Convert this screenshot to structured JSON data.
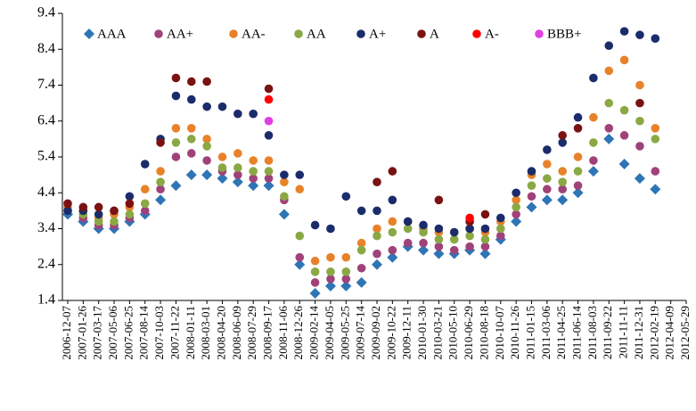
{
  "chart_data": {
    "type": "scatter",
    "categories": [
      "2006-12-07",
      "2007-01-26",
      "2007-03-17",
      "2007-05-06",
      "2007-06-25",
      "2007-08-14",
      "2007-10-03",
      "2007-11-22",
      "2008-01-11",
      "2008-03-01",
      "2008-04-20",
      "2008-06-09",
      "2008-07-29",
      "2008-09-17",
      "2008-11-06",
      "2008-12-26",
      "2009-02-14",
      "2009-04-05",
      "2009-05-25",
      "2009-07-14",
      "2009-09-02",
      "2009-10-22",
      "2009-12-11",
      "2010-01-30",
      "2010-03-21",
      "2010-05-10",
      "2010-06-29",
      "2010-08-18",
      "2010-10-07",
      "2010-11-26",
      "2011-01-15",
      "2011-03-06",
      "2011-04-25",
      "2011-06-14",
      "2011-08-03",
      "2011-09-22",
      "2011-11-11",
      "2011-12-31",
      "2012-02-19",
      "2012-04-09",
      "2012-05-29"
    ],
    "ylim": [
      1.4,
      9.4
    ],
    "yticks": [
      1.4,
      2.4,
      3.4,
      4.4,
      5.4,
      6.4,
      7.4,
      8.4,
      9.4
    ],
    "legend": "top",
    "series": [
      {
        "name": "AAA",
        "color": "#2e75b6",
        "marker": "diamond",
        "values": [
          3.8,
          3.6,
          3.4,
          3.4,
          3.6,
          3.8,
          4.2,
          4.6,
          4.9,
          4.9,
          4.8,
          4.7,
          4.6,
          4.6,
          3.8,
          2.4,
          1.6,
          1.8,
          1.8,
          1.9,
          2.4,
          2.6,
          2.9,
          2.8,
          2.7,
          2.7,
          2.8,
          2.7,
          3.1,
          3.6,
          4.0,
          4.2,
          4.2,
          4.4,
          5.0,
          5.9,
          5.2,
          4.8,
          4.5,
          null,
          null
        ]
      },
      {
        "name": "AA+",
        "color": "#a0427a",
        "marker": "circle",
        "values": [
          3.9,
          3.7,
          3.5,
          3.5,
          3.7,
          3.9,
          4.5,
          5.4,
          5.5,
          5.3,
          5.0,
          4.9,
          4.8,
          4.8,
          4.2,
          2.6,
          1.9,
          2.0,
          2.0,
          2.3,
          2.7,
          2.8,
          3.0,
          3.0,
          2.9,
          2.8,
          2.9,
          2.9,
          3.2,
          3.8,
          4.3,
          4.5,
          4.5,
          4.6,
          5.3,
          6.2,
          6.0,
          5.7,
          5.0,
          null,
          null
        ]
      },
      {
        "name": "AA-",
        "color": "#e8822a",
        "marker": "circle",
        "values": [
          4.0,
          3.9,
          3.7,
          3.8,
          4.0,
          4.5,
          5.0,
          6.2,
          6.2,
          5.9,
          5.4,
          5.5,
          5.3,
          5.3,
          4.7,
          4.5,
          2.5,
          2.6,
          2.6,
          3.0,
          3.4,
          3.6,
          3.6,
          3.4,
          3.3,
          3.3,
          3.4,
          3.3,
          3.6,
          4.2,
          4.9,
          5.2,
          5.0,
          5.4,
          6.5,
          7.8,
          8.1,
          7.4,
          6.2,
          null,
          null
        ]
      },
      {
        "name": "AA",
        "color": "#8aa843",
        "marker": "circle",
        "values": [
          3.9,
          3.8,
          3.6,
          3.6,
          3.8,
          4.1,
          4.7,
          5.8,
          5.9,
          5.7,
          5.1,
          5.1,
          5.0,
          5.0,
          4.3,
          3.2,
          2.2,
          2.2,
          2.2,
          2.8,
          3.2,
          3.3,
          3.4,
          3.3,
          3.1,
          3.1,
          3.2,
          3.1,
          3.4,
          4.0,
          4.6,
          4.8,
          4.7,
          5.0,
          5.8,
          6.9,
          6.7,
          6.4,
          5.9,
          null,
          null
        ]
      },
      {
        "name": "A+",
        "color": "#1b2c6b",
        "marker": "circle",
        "values": [
          3.9,
          3.9,
          3.8,
          3.9,
          4.3,
          5.2,
          5.9,
          7.1,
          7.0,
          6.8,
          6.8,
          6.6,
          6.6,
          6.0,
          4.9,
          4.9,
          3.5,
          3.4,
          4.3,
          3.9,
          3.9,
          4.2,
          3.6,
          3.5,
          3.4,
          3.3,
          3.4,
          3.4,
          3.7,
          4.4,
          5.0,
          5.6,
          5.8,
          6.5,
          7.6,
          8.5,
          8.9,
          8.8,
          8.7,
          null,
          null
        ]
      },
      {
        "name": "A",
        "color": "#7a1212",
        "marker": "circle",
        "values": [
          4.1,
          4.0,
          4.0,
          3.9,
          4.1,
          null,
          5.8,
          7.6,
          7.5,
          7.5,
          null,
          null,
          null,
          7.3,
          null,
          null,
          null,
          null,
          null,
          null,
          4.7,
          5.0,
          null,
          null,
          4.2,
          null,
          3.6,
          3.8,
          null,
          null,
          null,
          null,
          6.0,
          6.2,
          null,
          null,
          null,
          6.9,
          null,
          null,
          null
        ]
      },
      {
        "name": "A-",
        "color": "#ff0000",
        "marker": "circle",
        "values": [
          null,
          null,
          null,
          null,
          null,
          null,
          null,
          null,
          null,
          null,
          null,
          null,
          null,
          7.0,
          null,
          null,
          null,
          null,
          null,
          null,
          null,
          null,
          null,
          null,
          null,
          null,
          3.7,
          null,
          null,
          null,
          null,
          null,
          null,
          null,
          null,
          null,
          null,
          null,
          null,
          null,
          null
        ]
      },
      {
        "name": "BBB+",
        "color": "#e040e0",
        "marker": "circle",
        "values": [
          null,
          null,
          null,
          null,
          null,
          null,
          null,
          null,
          null,
          null,
          null,
          null,
          null,
          6.4,
          null,
          null,
          null,
          null,
          null,
          null,
          null,
          null,
          null,
          null,
          null,
          null,
          null,
          null,
          null,
          null,
          null,
          null,
          null,
          null,
          null,
          null,
          null,
          null,
          null,
          null,
          null
        ]
      }
    ]
  }
}
